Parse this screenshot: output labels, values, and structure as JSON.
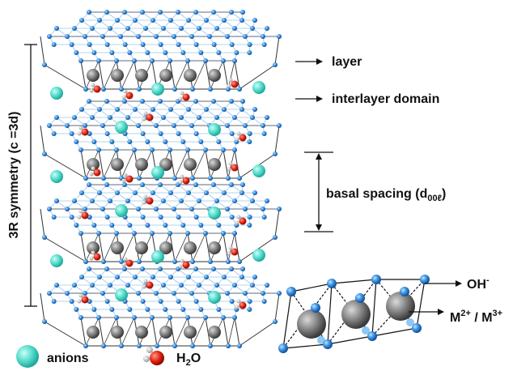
{
  "labels": {
    "layer": "layer",
    "interlayer": "interlayer domain",
    "basal_spacing": {
      "text": "basal spacing (d",
      "sub": "00ℓ",
      "end": ")"
    },
    "symmetry": "3R symmetry (c =3d)",
    "hydroxide": {
      "text": "OH",
      "sup": "-"
    },
    "metals": {
      "text1": "M",
      "sup1": "2+",
      "sep": " / M",
      "sup2": "3+"
    }
  },
  "legend": {
    "anions": "anions",
    "water": {
      "text": "H",
      "sub": "2",
      "end": "O"
    }
  }
}
